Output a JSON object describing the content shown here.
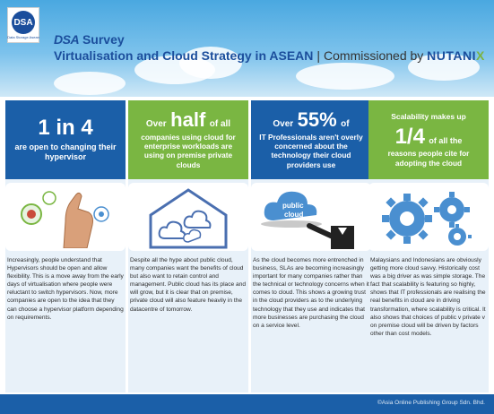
{
  "header": {
    "logo_text": "DSA",
    "logo_subtext": "Data Storage Asean",
    "title_prefix": "DSA",
    "title_word": "Survey",
    "subtitle": "Virtualisation and Cloud Strategy in ASEAN",
    "separator": "|",
    "commissioned": "Commissioned by",
    "sponsor_main": "NUTANI",
    "sponsor_x": "X"
  },
  "columns": [
    {
      "head_big": "1 in 4",
      "head_small": "are open to changing their hypervisor",
      "body": "Increasingly, people understand that Hypervisors should be open and allow flexibility. This is a move away from the early days of virtualisation where people were reluctant to switch hypervisors. Now, more companies are open to the idea that they can choose a hypervisor platform depending on requirements."
    },
    {
      "head_pre": "Over",
      "head_big": "half",
      "head_post": "of all",
      "head_small": "companies using cloud for enterprise workloads are using on premise private clouds",
      "body": "Despite all the hype about public cloud, many companies want the benefits of cloud but also want to retain control and management. Public cloud has its place and will grow, but it is clear that on premise, private cloud will also feature heavily in the datacentre of tomorrow."
    },
    {
      "head_pre": "Over",
      "head_big": "55%",
      "head_post": "of",
      "head_small": "IT Professionals aren't overly concerned about the technology their cloud providers use",
      "illus_label_1": "public",
      "illus_label_2": "cloud",
      "body": "As the cloud becomes more entrenched in business, SLAs are becoming increasingly important for many companies rather than the technical or technology concerns when it comes to cloud. This shows a growing trust in the cloud providers as to the underlying technology that they use and indicates that more businesses are purchasing the cloud on a service level."
    },
    {
      "head_top": "Scalability makes up",
      "head_big": "1/4",
      "head_post": "of all the",
      "head_small": "reasons people cite for adopting the cloud",
      "body": "Malaysians and Indonesians are obviously getting more cloud savvy. Historically cost was a big driver as was simple storage. The fact that scalability is featuring so highly, shows that IT professionals are realising the real benefits in cloud are in driving transformation, where scalability is critical. It also shows that choices of public v private v on premise cloud will be driven by factors other than cost models."
    }
  ],
  "footer": {
    "copyright": "©Asia Online Publishing Group Sdn. Bhd."
  },
  "colors": {
    "blue": "#1b5fa8",
    "green": "#7ab642",
    "panel": "#e8f1f9"
  }
}
